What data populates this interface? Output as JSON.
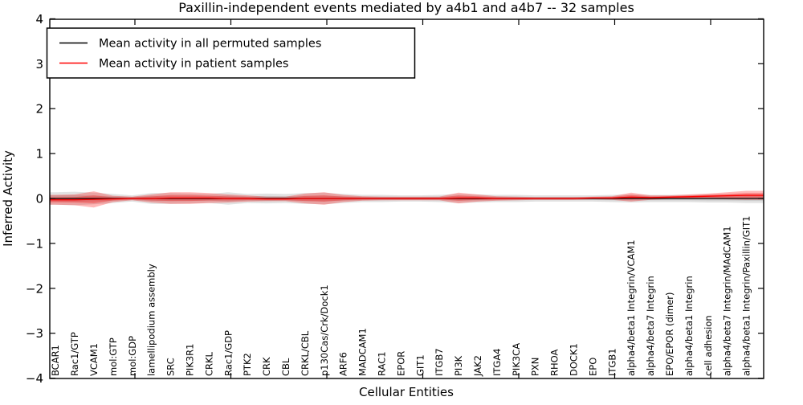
{
  "chart_data": {
    "type": "line",
    "title": "Paxillin-independent events mediated by a4b1 and a4b7 -- 32 samples",
    "xlabel": "Cellular Entities",
    "ylabel": "Inferred Activity",
    "ylim": [
      -4,
      4
    ],
    "yticks": [
      -4,
      -3,
      -2,
      -1,
      0,
      1,
      2,
      3,
      4
    ],
    "grid": false,
    "zero_reference_line": "dotted",
    "legend_position": "upper left",
    "categories": [
      "BCAR1",
      "Rac1/GTP",
      "VCAM1",
      "mol:GTP",
      "mol:GDP",
      "lamellipodium assembly",
      "SRC",
      "PIK3R1",
      "CRKL",
      "Rac1/GDP",
      "PTK2",
      "CRK",
      "CBL",
      "CRKL/CBL",
      "p130Cas/Crk/Dock1",
      "ARF6",
      "MADCAM1",
      "RAC1",
      "EPOR",
      "GIT1",
      "ITGB7",
      "PI3K",
      "JAK2",
      "ITGA4",
      "PIK3CA",
      "PXN",
      "RHOA",
      "DOCK1",
      "EPO",
      "ITGB1",
      "alpha4/beta1 Integrin/VCAM1",
      "alpha4/beta7 Integrin",
      "EPO/EPOR (dimer)",
      "alpha4/beta1 Integrin",
      "cell adhesion",
      "alpha4/beta7 Integrin/MAdCAM1",
      "alpha4/beta1 Integrin/Paxillin/GIT1"
    ],
    "series": [
      {
        "name": "Mean activity in all permuted samples",
        "color": "#000000",
        "band_color": "rgba(90,90,90,0.18)",
        "values": [
          0,
          0,
          0,
          0,
          0,
          0,
          0,
          0,
          0,
          0,
          0,
          0,
          0,
          0,
          0,
          0,
          0,
          0,
          0,
          0,
          0,
          0,
          0,
          0,
          0,
          0,
          0,
          0,
          0,
          0,
          0,
          0,
          0,
          0,
          0,
          0,
          0
        ],
        "band_half_width": [
          0.14,
          0.15,
          0.13,
          0.1,
          0.07,
          0.12,
          0.12,
          0.11,
          0.1,
          0.14,
          0.1,
          0.11,
          0.1,
          0.12,
          0.13,
          0.1,
          0.08,
          0.08,
          0.07,
          0.07,
          0.08,
          0.1,
          0.09,
          0.08,
          0.08,
          0.07,
          0.07,
          0.07,
          0.07,
          0.08,
          0.09,
          0.08,
          0.08,
          0.08,
          0.09,
          0.09,
          0.1
        ]
      },
      {
        "name": "Mean activity in patient samples",
        "color": "#ff0000",
        "band_color": "rgba(255,0,0,0.28)",
        "values": [
          -0.03,
          -0.03,
          -0.02,
          -0.01,
          0,
          0,
          0.01,
          0.01,
          0.01,
          0,
          0,
          -0.01,
          -0.01,
          0,
          0,
          0,
          0,
          0,
          0,
          0,
          0,
          0.01,
          0.01,
          0,
          0,
          0,
          0,
          0,
          0.01,
          0.01,
          0.03,
          0.02,
          0.03,
          0.04,
          0.05,
          0.06,
          0.07
        ],
        "band_half_width": [
          0.11,
          0.12,
          0.18,
          0.07,
          0.04,
          0.09,
          0.13,
          0.13,
          0.11,
          0.09,
          0.07,
          0.05,
          0.05,
          0.11,
          0.14,
          0.08,
          0.05,
          0.04,
          0.04,
          0.04,
          0.04,
          0.12,
          0.08,
          0.05,
          0.04,
          0.03,
          0.03,
          0.03,
          0.03,
          0.04,
          0.1,
          0.05,
          0.04,
          0.05,
          0.06,
          0.08,
          0.1
        ]
      }
    ]
  },
  "colors": {
    "frame": "#000000",
    "background": "#ffffff",
    "zero_line": "#000000"
  }
}
